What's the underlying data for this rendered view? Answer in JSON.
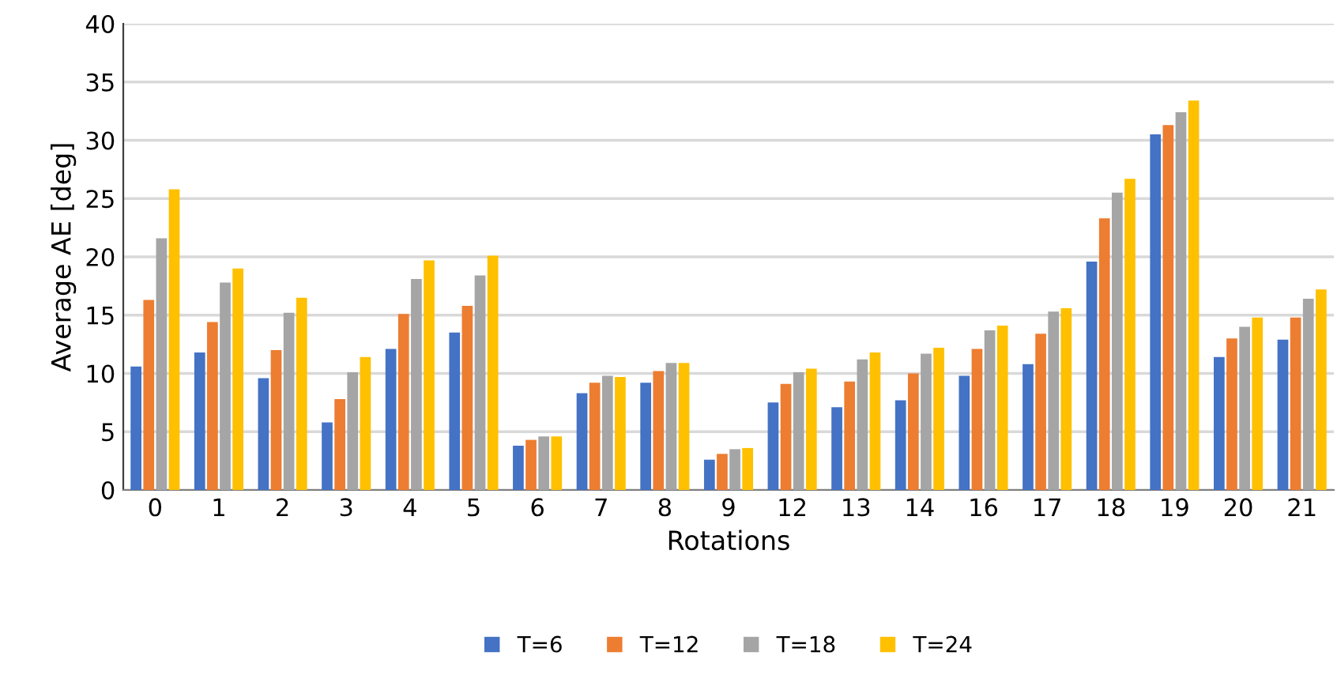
{
  "chart_data": {
    "type": "bar",
    "xlabel": "Rotations",
    "ylabel": "Average AE [deg]",
    "categories": [
      "0",
      "1",
      "2",
      "3",
      "4",
      "5",
      "6",
      "7",
      "8",
      "9",
      "12",
      "13",
      "14",
      "16",
      "17",
      "18",
      "19",
      "20",
      "21"
    ],
    "series": [
      {
        "name": "T=6",
        "color": "#4472c4",
        "values": [
          10.6,
          11.8,
          9.6,
          5.8,
          12.1,
          13.5,
          3.8,
          8.3,
          9.2,
          2.6,
          7.5,
          7.1,
          7.7,
          9.8,
          10.8,
          19.6,
          30.5,
          11.4,
          12.9
        ]
      },
      {
        "name": "T=12",
        "color": "#ed7d31",
        "values": [
          16.3,
          14.4,
          12.0,
          7.8,
          15.1,
          15.8,
          4.3,
          9.2,
          10.2,
          3.1,
          9.1,
          9.3,
          10.0,
          12.1,
          13.4,
          23.3,
          31.3,
          13.0,
          14.8
        ]
      },
      {
        "name": "T=18",
        "color": "#a5a5a5",
        "values": [
          21.6,
          17.8,
          15.2,
          10.1,
          18.1,
          18.4,
          4.6,
          9.8,
          10.9,
          3.5,
          10.1,
          11.2,
          11.7,
          13.7,
          15.3,
          25.5,
          32.4,
          14.0,
          16.4
        ]
      },
      {
        "name": "T=24",
        "color": "#ffc000",
        "values": [
          25.8,
          19.0,
          16.5,
          11.4,
          19.7,
          20.1,
          4.6,
          9.7,
          10.9,
          3.6,
          10.4,
          11.8,
          12.2,
          14.1,
          15.6,
          26.7,
          33.4,
          14.8,
          17.2
        ]
      }
    ],
    "ylim": [
      0,
      40
    ],
    "yticks": [
      0,
      5,
      10,
      15,
      20,
      25,
      30,
      35,
      40
    ],
    "grid": "y",
    "legend": "bottom"
  }
}
